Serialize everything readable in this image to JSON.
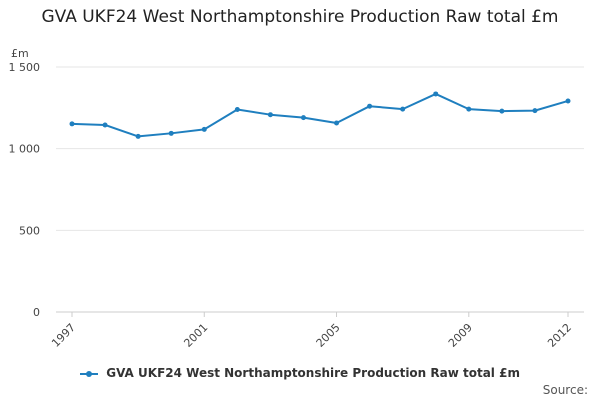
{
  "colors": {
    "series": "#1f7fbf",
    "grid": "#e6e6e6",
    "axis_text": "#444444"
  },
  "legend_label": "GVA UKF24 West Northamptonshire Production Raw total £m",
  "source_label": "Source:",
  "chart_data": {
    "type": "line",
    "title": "GVA UKF24 West Northamptonshire Production Raw total £m",
    "ylabel": "£m",
    "ylim": [
      0,
      1500
    ],
    "yticks": [
      {
        "value": 0,
        "label": "0"
      },
      {
        "value": 500,
        "label": "500"
      },
      {
        "value": 1000,
        "label": "1 000"
      },
      {
        "value": 1500,
        "label": "1 500"
      }
    ],
    "xlim": [
      1997,
      2012
    ],
    "xticks": [
      {
        "value": 1997,
        "label": "1997"
      },
      {
        "value": 2001,
        "label": "2001"
      },
      {
        "value": 2005,
        "label": "2005"
      },
      {
        "value": 2009,
        "label": "2009"
      },
      {
        "value": 2012,
        "label": "2012"
      }
    ],
    "grid": true,
    "legend_position": "bottom",
    "series": [
      {
        "name": "GVA UKF24 West Northamptonshire Production Raw total £m",
        "x": [
          1997,
          1998,
          1999,
          2000,
          2001,
          2002,
          2003,
          2004,
          2005,
          2006,
          2007,
          2008,
          2009,
          2010,
          2011,
          2012
        ],
        "values": [
          1152,
          1145,
          1075,
          1094,
          1118,
          1240,
          1208,
          1190,
          1157,
          1260,
          1242,
          1335,
          1242,
          1230,
          1233,
          1292
        ]
      }
    ]
  }
}
